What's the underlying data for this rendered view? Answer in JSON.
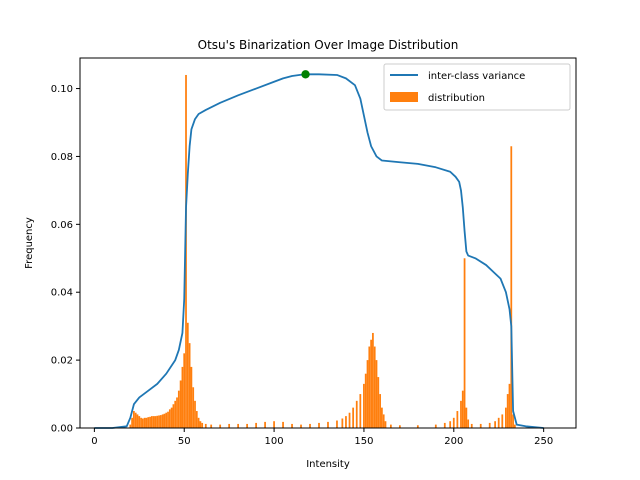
{
  "chart_data": {
    "type": "bar+line",
    "title": "Otsu's Binarization Over Image Distribution",
    "xlabel": "Intensity",
    "ylabel": "Frequency",
    "xlim": [
      -8,
      268
    ],
    "ylim": [
      0,
      0.109
    ],
    "x_ticks": [
      0,
      50,
      100,
      150,
      200,
      250
    ],
    "y_ticks": [
      0.0,
      0.02,
      0.04,
      0.06,
      0.08,
      0.1
    ],
    "y_tick_labels": [
      "0.00",
      "0.02",
      "0.04",
      "0.06",
      "0.08",
      "0.10"
    ],
    "grid": false,
    "legend_position": "upper right",
    "colors": {
      "line": "#1f77b4",
      "bars": "#ff7f0e",
      "marker": "#008000"
    },
    "series": [
      {
        "name": "inter-class variance",
        "type": "line",
        "points": [
          [
            0,
            0
          ],
          [
            10,
            0
          ],
          [
            18,
            0.0005
          ],
          [
            20,
            0.003
          ],
          [
            22,
            0.007
          ],
          [
            25,
            0.009
          ],
          [
            30,
            0.011
          ],
          [
            35,
            0.013
          ],
          [
            40,
            0.016
          ],
          [
            45,
            0.02
          ],
          [
            47,
            0.023
          ],
          [
            49,
            0.028
          ],
          [
            50,
            0.038
          ],
          [
            51,
            0.065
          ],
          [
            52,
            0.075
          ],
          [
            53,
            0.083
          ],
          [
            54,
            0.088
          ],
          [
            56,
            0.091
          ],
          [
            58,
            0.0925
          ],
          [
            62,
            0.0937
          ],
          [
            70,
            0.0958
          ],
          [
            80,
            0.098
          ],
          [
            90,
            0.1
          ],
          [
            100,
            0.102
          ],
          [
            105,
            0.103
          ],
          [
            110,
            0.1037
          ],
          [
            117,
            0.1042
          ],
          [
            125,
            0.1042
          ],
          [
            135,
            0.104
          ],
          [
            140,
            0.103
          ],
          [
            145,
            0.101
          ],
          [
            148,
            0.097
          ],
          [
            150,
            0.092
          ],
          [
            152,
            0.087
          ],
          [
            154,
            0.083
          ],
          [
            157,
            0.08
          ],
          [
            160,
            0.0788
          ],
          [
            170,
            0.0783
          ],
          [
            180,
            0.0778
          ],
          [
            190,
            0.0768
          ],
          [
            198,
            0.0755
          ],
          [
            201,
            0.074
          ],
          [
            203,
            0.0725
          ],
          [
            204,
            0.07
          ],
          [
            205,
            0.065
          ],
          [
            206,
            0.058
          ],
          [
            207,
            0.052
          ],
          [
            208,
            0.0508
          ],
          [
            212,
            0.05
          ],
          [
            218,
            0.048
          ],
          [
            222,
            0.046
          ],
          [
            226,
            0.044
          ],
          [
            229,
            0.04
          ],
          [
            231,
            0.035
          ],
          [
            232,
            0.03
          ],
          [
            233,
            0.005
          ],
          [
            235,
            0.001
          ],
          [
            240,
            0.0005
          ],
          [
            250,
            0
          ]
        ]
      },
      {
        "name": "distribution",
        "type": "bar",
        "bins": [
          [
            20,
            0.001
          ],
          [
            21,
            0.003
          ],
          [
            22,
            0.005
          ],
          [
            23,
            0.0045
          ],
          [
            24,
            0.004
          ],
          [
            25,
            0.0035
          ],
          [
            26,
            0.003
          ],
          [
            27,
            0.0028
          ],
          [
            28,
            0.003
          ],
          [
            29,
            0.003
          ],
          [
            30,
            0.0032
          ],
          [
            31,
            0.0033
          ],
          [
            32,
            0.0035
          ],
          [
            33,
            0.0035
          ],
          [
            34,
            0.0035
          ],
          [
            35,
            0.0036
          ],
          [
            36,
            0.0037
          ],
          [
            37,
            0.0038
          ],
          [
            38,
            0.004
          ],
          [
            39,
            0.0042
          ],
          [
            40,
            0.0045
          ],
          [
            41,
            0.0048
          ],
          [
            42,
            0.0055
          ],
          [
            43,
            0.006
          ],
          [
            44,
            0.007
          ],
          [
            45,
            0.008
          ],
          [
            46,
            0.009
          ],
          [
            47,
            0.011
          ],
          [
            48,
            0.014
          ],
          [
            49,
            0.018
          ],
          [
            50,
            0.022
          ],
          [
            51,
            0.104
          ],
          [
            52,
            0.031
          ],
          [
            53,
            0.025
          ],
          [
            54,
            0.018
          ],
          [
            55,
            0.012
          ],
          [
            56,
            0.008
          ],
          [
            57,
            0.005
          ],
          [
            58,
            0.003
          ],
          [
            59,
            0.002
          ],
          [
            60,
            0.0015
          ],
          [
            62,
            0.0012
          ],
          [
            65,
            0.001
          ],
          [
            70,
            0.001
          ],
          [
            75,
            0.0012
          ],
          [
            80,
            0.0012
          ],
          [
            85,
            0.0012
          ],
          [
            90,
            0.0015
          ],
          [
            95,
            0.0018
          ],
          [
            100,
            0.002
          ],
          [
            105,
            0.0018
          ],
          [
            110,
            0.0012
          ],
          [
            115,
            0.001
          ],
          [
            120,
            0.0012
          ],
          [
            125,
            0.0015
          ],
          [
            130,
            0.0018
          ],
          [
            135,
            0.0022
          ],
          [
            138,
            0.0028
          ],
          [
            140,
            0.0035
          ],
          [
            142,
            0.0045
          ],
          [
            144,
            0.006
          ],
          [
            146,
            0.008
          ],
          [
            148,
            0.01
          ],
          [
            150,
            0.013
          ],
          [
            151,
            0.016
          ],
          [
            152,
            0.02
          ],
          [
            153,
            0.024
          ],
          [
            154,
            0.026
          ],
          [
            155,
            0.028
          ],
          [
            156,
            0.024
          ],
          [
            157,
            0.02
          ],
          [
            158,
            0.015
          ],
          [
            159,
            0.01
          ],
          [
            160,
            0.006
          ],
          [
            161,
            0.004
          ],
          [
            162,
            0.002
          ],
          [
            165,
            0.001
          ],
          [
            170,
            0.0008
          ],
          [
            180,
            0.0008
          ],
          [
            190,
            0.001
          ],
          [
            195,
            0.0015
          ],
          [
            198,
            0.002
          ],
          [
            200,
            0.003
          ],
          [
            202,
            0.005
          ],
          [
            204,
            0.008
          ],
          [
            205,
            0.011
          ],
          [
            206,
            0.05
          ],
          [
            207,
            0.006
          ],
          [
            208,
            0.0025
          ],
          [
            210,
            0.0012
          ],
          [
            215,
            0.0012
          ],
          [
            220,
            0.0015
          ],
          [
            223,
            0.002
          ],
          [
            225,
            0.003
          ],
          [
            227,
            0.004
          ],
          [
            229,
            0.006
          ],
          [
            230,
            0.01
          ],
          [
            231,
            0.013
          ],
          [
            232,
            0.083
          ],
          [
            233,
            0.004
          ],
          [
            234,
            0.001
          ]
        ]
      }
    ],
    "optimal_point": {
      "x": 117.5,
      "y": 0.1042
    }
  }
}
